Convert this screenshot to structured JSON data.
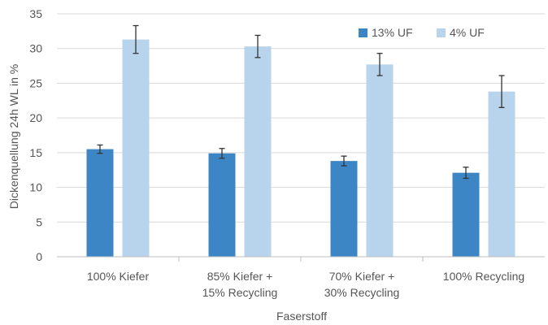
{
  "chart_data": {
    "type": "bar",
    "categories": [
      [
        "100% Kiefer"
      ],
      [
        "85% Kiefer +",
        "15% Recycling"
      ],
      [
        "70% Kiefer +",
        "30% Recycling"
      ],
      [
        "100% Recycling"
      ]
    ],
    "series": [
      {
        "name": "13% UF",
        "color": "#3d86c6",
        "values": [
          15.5,
          14.9,
          13.8,
          12.1
        ],
        "errors": [
          0.6,
          0.7,
          0.7,
          0.8
        ]
      },
      {
        "name": "4% UF",
        "color": "#b7d4ec",
        "values": [
          31.3,
          30.3,
          27.7,
          23.8
        ],
        "errors": [
          2.0,
          1.6,
          1.6,
          2.3
        ]
      }
    ],
    "xlabel": "Faserstoff",
    "ylabel": "Dickenquellung 24h WL in %",
    "ylim": [
      0,
      35
    ],
    "yticks": [
      0,
      5,
      10,
      15,
      20,
      25,
      30,
      35
    ],
    "grid": true,
    "legend": "top-right"
  }
}
